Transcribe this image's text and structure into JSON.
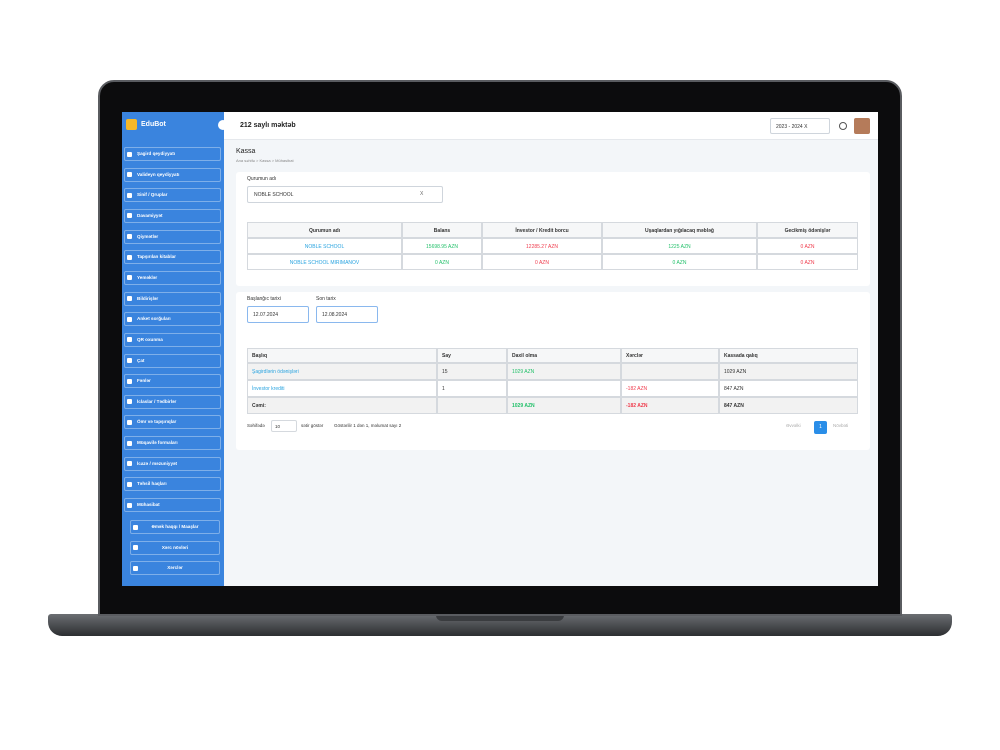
{
  "sidebar": {
    "brand": "EduBot",
    "items": [
      "Şagird qeydiyyatı",
      "Valideyn qeydiyyatı",
      "Sinif / Qruplar",
      "Davamiyyət",
      "Qiymətlər",
      "Tapşırılan kitablar",
      "Yeməklər",
      "Bildirişlər",
      "Anket sorğuları",
      "QR oxunma",
      "Çat",
      "Fənlər",
      "İclaslar / Tədbirlər",
      "Ömr və tapşırıqlar",
      "Müqavilə formaları",
      "İcazə / məzuniyyət",
      "Təhsil haqları",
      "Mühasibat"
    ],
    "subitems": [
      "Əmək haqqı / Maaşlar",
      "Xərc növləri",
      "Xərclər"
    ]
  },
  "header": {
    "school": "212 saylı məktəb",
    "year": "2023 - 2024 X"
  },
  "page": {
    "title": "Kassa",
    "breadcrumb": "Ana səhifə > Kassa > Mühasibat",
    "org_label": "Qurumun adı",
    "org_value": "NOBLE SCHOOL",
    "clear": "X"
  },
  "summary_table": {
    "headers": [
      "Qurumun adı",
      "Balans",
      "İnvestor / Kredit borcu",
      "Uşaqlardan yığılacaq məbləğ",
      "Gecikmiş ödənişlər"
    ],
    "rows": [
      [
        "NOBLE SCHOOL",
        "15698.95 AZN",
        "12285.27 AZN",
        "1225 AZN",
        "0 AZN"
      ],
      [
        "NOBLE SCHOOL MIRIMANOV",
        "0 AZN",
        "0 AZN",
        "0 AZN",
        "0 AZN"
      ]
    ]
  },
  "dates": {
    "start_label": "Başlanğıc tarixi",
    "start": "12.07.2024",
    "end_label": "Son tarix",
    "end": "12.08.2024"
  },
  "cash_table": {
    "headers": [
      "Başlıq",
      "Say",
      "Daxil olma",
      "Xərclər",
      "Kassada qalıq"
    ],
    "rows": [
      [
        "Şagirdlərin ödənişləri",
        "15",
        "1029 AZN",
        null,
        "1029 AZN"
      ],
      [
        "İnvestor krediti",
        "1",
        null,
        "-182 AZN",
        "847 AZN"
      ],
      [
        "Cəmi:",
        null,
        "1029 AZN",
        "-182 AZN",
        "847 AZN"
      ]
    ]
  },
  "pagination": {
    "per_page_label": "Səhifədə",
    "per_page": "10",
    "show_label": "sətir göstər",
    "info": "Göstərilir 1 dən 1, məlumat sayı 2",
    "prev": "Əvvəlki",
    "page": "1",
    "next": "Növbəti"
  }
}
